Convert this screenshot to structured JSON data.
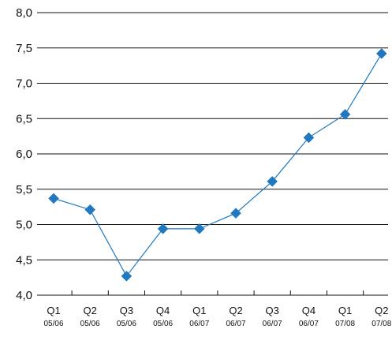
{
  "chart_data": {
    "type": "line",
    "title": "",
    "xlabel": "",
    "ylabel": "",
    "categories": [
      {
        "quarter": "Q1",
        "year": "05/06"
      },
      {
        "quarter": "Q2",
        "year": "05/06"
      },
      {
        "quarter": "Q3",
        "year": "05/06"
      },
      {
        "quarter": "Q4",
        "year": "05/06"
      },
      {
        "quarter": "Q1",
        "year": "06/07"
      },
      {
        "quarter": "Q2",
        "year": "06/07"
      },
      {
        "quarter": "Q3",
        "year": "06/07"
      },
      {
        "quarter": "Q4",
        "year": "06/07"
      },
      {
        "quarter": "Q1",
        "year": "07/08"
      },
      {
        "quarter": "Q2",
        "year": "07/08"
      }
    ],
    "series": [
      {
        "values": [
          5.37,
          5.21,
          4.27,
          4.94,
          4.94,
          5.16,
          5.61,
          6.23,
          6.56,
          7.42
        ],
        "color": "#1f78c0",
        "marker": "diamond"
      }
    ],
    "ylim": [
      4.0,
      8.0
    ],
    "yticks": [
      "4,0",
      "4,5",
      "5,0",
      "5,5",
      "6,0",
      "6,5",
      "7,0",
      "7,5",
      "8,0"
    ],
    "grid": "horizontal",
    "legend": "none"
  }
}
